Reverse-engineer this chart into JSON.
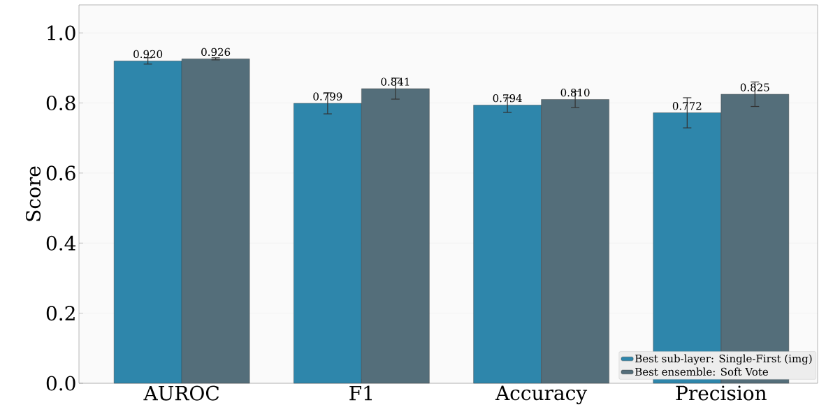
{
  "chart_data": {
    "type": "bar",
    "ylabel": "Score",
    "categories": [
      "AUROC",
      "F1",
      "Accuracy",
      "Precision"
    ],
    "series": [
      {
        "name": "Best sub-layer: Single-First (img)",
        "color": "#2e86ab",
        "values": [
          0.92,
          0.799,
          0.794,
          0.772
        ],
        "errors": [
          0.009,
          0.03,
          0.021,
          0.043
        ],
        "value_labels": [
          "0.920",
          "0.799",
          "0.794",
          "0.772"
        ]
      },
      {
        "name": "Best ensemble: Soft Vote",
        "color": "#546e7a",
        "values": [
          0.926,
          0.841,
          0.81,
          0.825
        ],
        "errors": [
          0.003,
          0.03,
          0.023,
          0.035
        ],
        "value_labels": [
          "0.926",
          "0.841",
          "0.810",
          "0.825"
        ]
      }
    ],
    "ylim": [
      0,
      1.08
    ],
    "yticks": [
      {
        "value": 0,
        "label": "0.0"
      },
      {
        "value": 0.2,
        "label": "0.2"
      },
      {
        "value": 0.4,
        "label": "0.4"
      },
      {
        "value": 0.6,
        "label": "0.6"
      },
      {
        "value": 0.8,
        "label": "0.8"
      },
      {
        "value": 1.0,
        "label": "1.0"
      }
    ],
    "grid": "y",
    "legend": "bottom right"
  }
}
